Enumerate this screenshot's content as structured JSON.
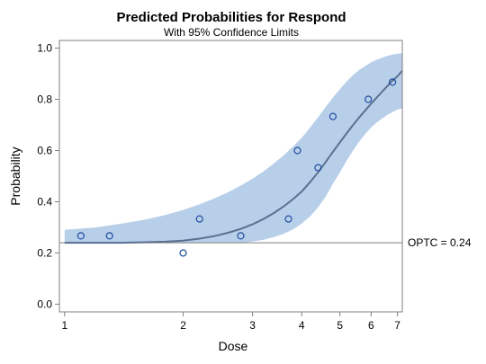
{
  "chart_data": {
    "type": "line",
    "title": "Predicted Probabilities for Respond",
    "subtitle": "With 95% Confidence Limits",
    "xlabel": "Dose",
    "ylabel": "Probability",
    "x_scale": "log",
    "xlim": [
      0.97,
      7.2
    ],
    "ylim": [
      -0.03,
      1.03
    ],
    "x_ticks": [
      1,
      2,
      3,
      4,
      5,
      6,
      7
    ],
    "y_ticks": [
      0.0,
      0.2,
      0.4,
      0.6,
      0.8,
      1.0
    ],
    "y_tick_labels": [
      "0.0",
      "0.2",
      "0.4",
      "0.6",
      "0.8",
      "1.0"
    ],
    "grid": false,
    "reference_line": {
      "y": 0.24,
      "label": "OPTC = 0.24",
      "color": "#7f7f7f"
    },
    "curve": {
      "x": [
        1,
        1.2,
        1.4,
        1.6,
        1.8,
        2.0,
        2.2,
        2.4,
        2.6,
        2.8,
        3.0,
        3.2,
        3.4,
        3.6,
        3.8,
        4.0,
        4.2,
        4.4,
        4.6,
        4.8,
        5.0,
        5.2,
        5.4,
        5.6,
        5.8,
        6.0,
        6.2,
        6.4,
        6.6,
        6.8,
        7.0,
        7.2
      ],
      "y": [
        0.24,
        0.24,
        0.24,
        0.242,
        0.244,
        0.248,
        0.256,
        0.266,
        0.279,
        0.294,
        0.312,
        0.333,
        0.356,
        0.382,
        0.41,
        0.44,
        0.477,
        0.515,
        0.555,
        0.595,
        0.632,
        0.667,
        0.7,
        0.73,
        0.757,
        0.783,
        0.807,
        0.83,
        0.852,
        0.873,
        0.89,
        0.912
      ],
      "lower": [
        0.24,
        0.24,
        0.24,
        0.24,
        0.24,
        0.24,
        0.24,
        0.24,
        0.24,
        0.24,
        0.245,
        0.252,
        0.262,
        0.275,
        0.292,
        0.315,
        0.343,
        0.378,
        0.42,
        0.47,
        0.515,
        0.56,
        0.6,
        0.635,
        0.665,
        0.69,
        0.71,
        0.725,
        0.74,
        0.75,
        0.76,
        0.765
      ],
      "upper": [
        0.29,
        0.3,
        0.315,
        0.33,
        0.348,
        0.368,
        0.39,
        0.413,
        0.437,
        0.463,
        0.49,
        0.519,
        0.55,
        0.582,
        0.615,
        0.65,
        0.69,
        0.73,
        0.77,
        0.807,
        0.84,
        0.87,
        0.895,
        0.915,
        0.93,
        0.945,
        0.955,
        0.963,
        0.97,
        0.975,
        0.978,
        0.98
      ],
      "line_color": "#5b6f8f",
      "band_color": "#b8cfea"
    },
    "points": {
      "x": [
        1.1,
        1.3,
        2.0,
        2.2,
        2.8,
        3.7,
        3.9,
        4.4,
        4.8,
        5.9,
        6.8
      ],
      "y": [
        0.267,
        0.267,
        0.2,
        0.333,
        0.267,
        0.333,
        0.6,
        0.533,
        0.733,
        0.8,
        0.867
      ],
      "color": "#1f4ea0"
    }
  }
}
